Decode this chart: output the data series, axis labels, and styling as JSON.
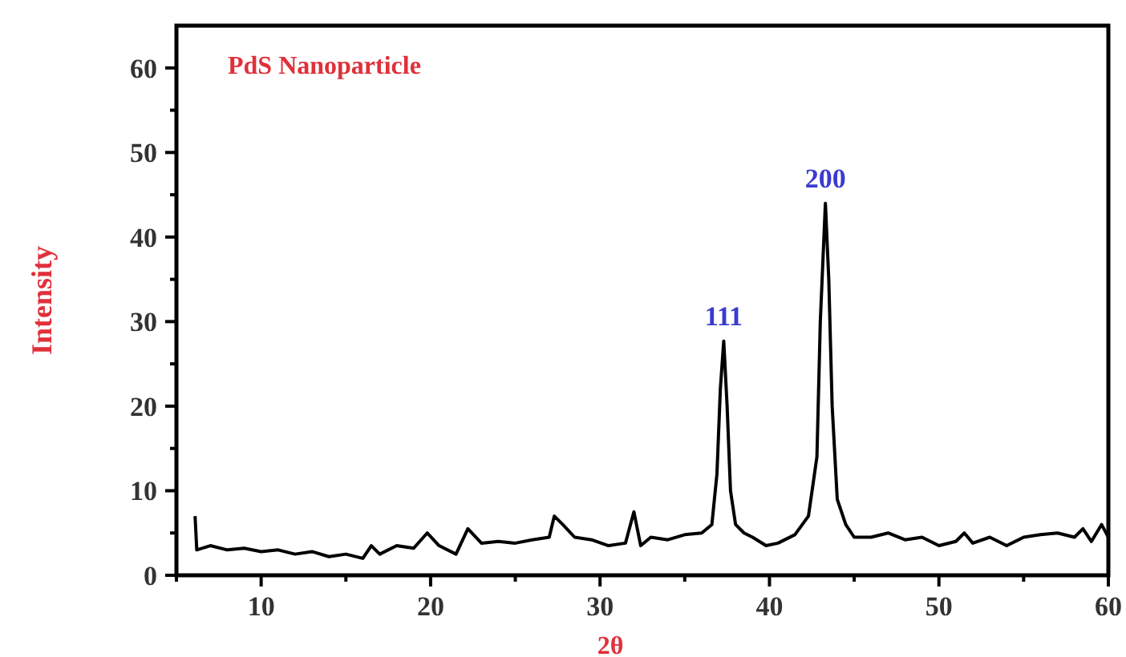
{
  "chart_data": {
    "type": "line",
    "title": "PdS Nanoparticle",
    "xlabel": "2θ",
    "ylabel": "Intensity",
    "xlim": [
      5,
      60
    ],
    "ylim": [
      0,
      65
    ],
    "xticks": [
      {
        "value": 5,
        "label": null
      },
      10,
      {
        "value": 15,
        "label": null
      },
      20,
      {
        "value": 25,
        "label": null
      },
      30,
      {
        "value": 35,
        "label": null
      },
      40,
      {
        "value": 45,
        "label": null
      },
      50,
      {
        "value": 55,
        "label": null
      },
      60
    ],
    "yticks": [
      0,
      {
        "value": 5,
        "label": null
      },
      10,
      {
        "value": 15,
        "label": null
      },
      20,
      {
        "value": 25,
        "label": null
      },
      30,
      {
        "value": 35,
        "label": null
      },
      40,
      {
        "value": 45,
        "label": null
      },
      50,
      {
        "value": 55,
        "label": null
      },
      60
    ],
    "grid": false,
    "marker": "none",
    "line_style": "solid",
    "annotations": [
      {
        "text": "111",
        "x": 37.3,
        "y": 27.7
      },
      {
        "text": "200",
        "x": 43.3,
        "y": 44
      }
    ],
    "series": [
      {
        "color": "#000000",
        "x": [
          6.1,
          6.2,
          7,
          8,
          9,
          10,
          11,
          12,
          13,
          14,
          15,
          16,
          16.5,
          17,
          18,
          19,
          19.8,
          20.5,
          21.5,
          22.2,
          23,
          24,
          25,
          26,
          27,
          27.3,
          27.8,
          28.5,
          29.5,
          30.5,
          31.5,
          32,
          32.4,
          33,
          34,
          35,
          36,
          36.6,
          36.9,
          37.1,
          37.3,
          37.5,
          37.7,
          38,
          38.5,
          39,
          39.8,
          40.5,
          41.5,
          42.3,
          42.8,
          43,
          43.3,
          43.5,
          43.7,
          44,
          44.5,
          45,
          46,
          47,
          48,
          49,
          50,
          51,
          51.5,
          52,
          53,
          54,
          55,
          56,
          57,
          58,
          58.5,
          59,
          59.6,
          60
        ],
        "values": [
          7,
          3,
          3.5,
          3,
          3.2,
          2.8,
          3,
          2.5,
          2.8,
          2.2,
          2.5,
          2,
          3.5,
          2.5,
          3.5,
          3.2,
          5,
          3.5,
          2.5,
          5.5,
          3.8,
          4,
          3.8,
          4.2,
          4.5,
          7,
          6,
          4.5,
          4.2,
          3.5,
          3.8,
          7.5,
          3.5,
          4.5,
          4.2,
          4.8,
          5,
          6,
          12,
          22,
          27.7,
          20,
          10,
          6,
          5,
          4.5,
          3.5,
          3.8,
          4.8,
          7,
          14,
          30,
          44,
          35,
          20,
          9,
          6,
          4.5,
          4.5,
          5,
          4.2,
          4.5,
          3.5,
          4,
          5,
          3.8,
          4.5,
          3.5,
          4.5,
          4.8,
          5,
          4.5,
          5.5,
          4,
          6,
          4.5
        ]
      }
    ]
  }
}
